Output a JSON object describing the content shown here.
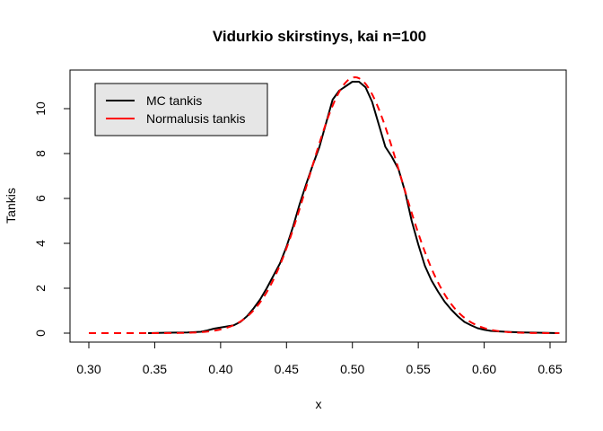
{
  "chart_data": {
    "type": "line",
    "title": "Vidurkio skirstinys, kai n=100",
    "xlabel": "x",
    "ylabel": "Tankis",
    "xlim": [
      0.3,
      0.66
    ],
    "ylim": [
      0,
      11.4
    ],
    "xticks": [
      "0.30",
      "0.35",
      "0.40",
      "0.45",
      "0.50",
      "0.55",
      "0.60",
      "0.65"
    ],
    "yticks": [
      "0",
      "2",
      "4",
      "6",
      "8",
      "10"
    ],
    "legend": {
      "position": "top-left",
      "box": true,
      "background": "#e6e6e6"
    },
    "grid": false,
    "series": [
      {
        "name": "MC tankis",
        "color": "#000000",
        "style": "solid",
        "points": [
          [
            0.345,
            0.0
          ],
          [
            0.36,
            0.02
          ],
          [
            0.375,
            0.03
          ],
          [
            0.385,
            0.06
          ],
          [
            0.39,
            0.12
          ],
          [
            0.395,
            0.2
          ],
          [
            0.4,
            0.25
          ],
          [
            0.405,
            0.3
          ],
          [
            0.41,
            0.35
          ],
          [
            0.415,
            0.5
          ],
          [
            0.42,
            0.75
          ],
          [
            0.425,
            1.1
          ],
          [
            0.43,
            1.5
          ],
          [
            0.435,
            2.0
          ],
          [
            0.44,
            2.55
          ],
          [
            0.445,
            3.1
          ],
          [
            0.45,
            3.85
          ],
          [
            0.455,
            4.75
          ],
          [
            0.46,
            5.75
          ],
          [
            0.465,
            6.65
          ],
          [
            0.47,
            7.5
          ],
          [
            0.475,
            8.3
          ],
          [
            0.48,
            9.35
          ],
          [
            0.485,
            10.4
          ],
          [
            0.49,
            10.8
          ],
          [
            0.495,
            11.0
          ],
          [
            0.5,
            11.2
          ],
          [
            0.505,
            11.2
          ],
          [
            0.51,
            10.95
          ],
          [
            0.515,
            10.3
          ],
          [
            0.52,
            9.3
          ],
          [
            0.525,
            8.3
          ],
          [
            0.53,
            7.85
          ],
          [
            0.535,
            7.3
          ],
          [
            0.54,
            6.3
          ],
          [
            0.545,
            5.0
          ],
          [
            0.55,
            3.95
          ],
          [
            0.555,
            3.0
          ],
          [
            0.56,
            2.35
          ],
          [
            0.565,
            1.85
          ],
          [
            0.57,
            1.4
          ],
          [
            0.575,
            1.05
          ],
          [
            0.58,
            0.75
          ],
          [
            0.585,
            0.5
          ],
          [
            0.59,
            0.35
          ],
          [
            0.595,
            0.22
          ],
          [
            0.6,
            0.15
          ],
          [
            0.605,
            0.1
          ],
          [
            0.61,
            0.08
          ],
          [
            0.62,
            0.05
          ],
          [
            0.63,
            0.03
          ],
          [
            0.64,
            0.02
          ],
          [
            0.657,
            0.0
          ]
        ]
      },
      {
        "name": "Normalusis tankis",
        "color": "#ff0000",
        "style": "dashed",
        "distribution": {
          "mean": 0.502,
          "sd": 0.035
        },
        "xrange": [
          0.3,
          0.657
        ]
      }
    ]
  }
}
